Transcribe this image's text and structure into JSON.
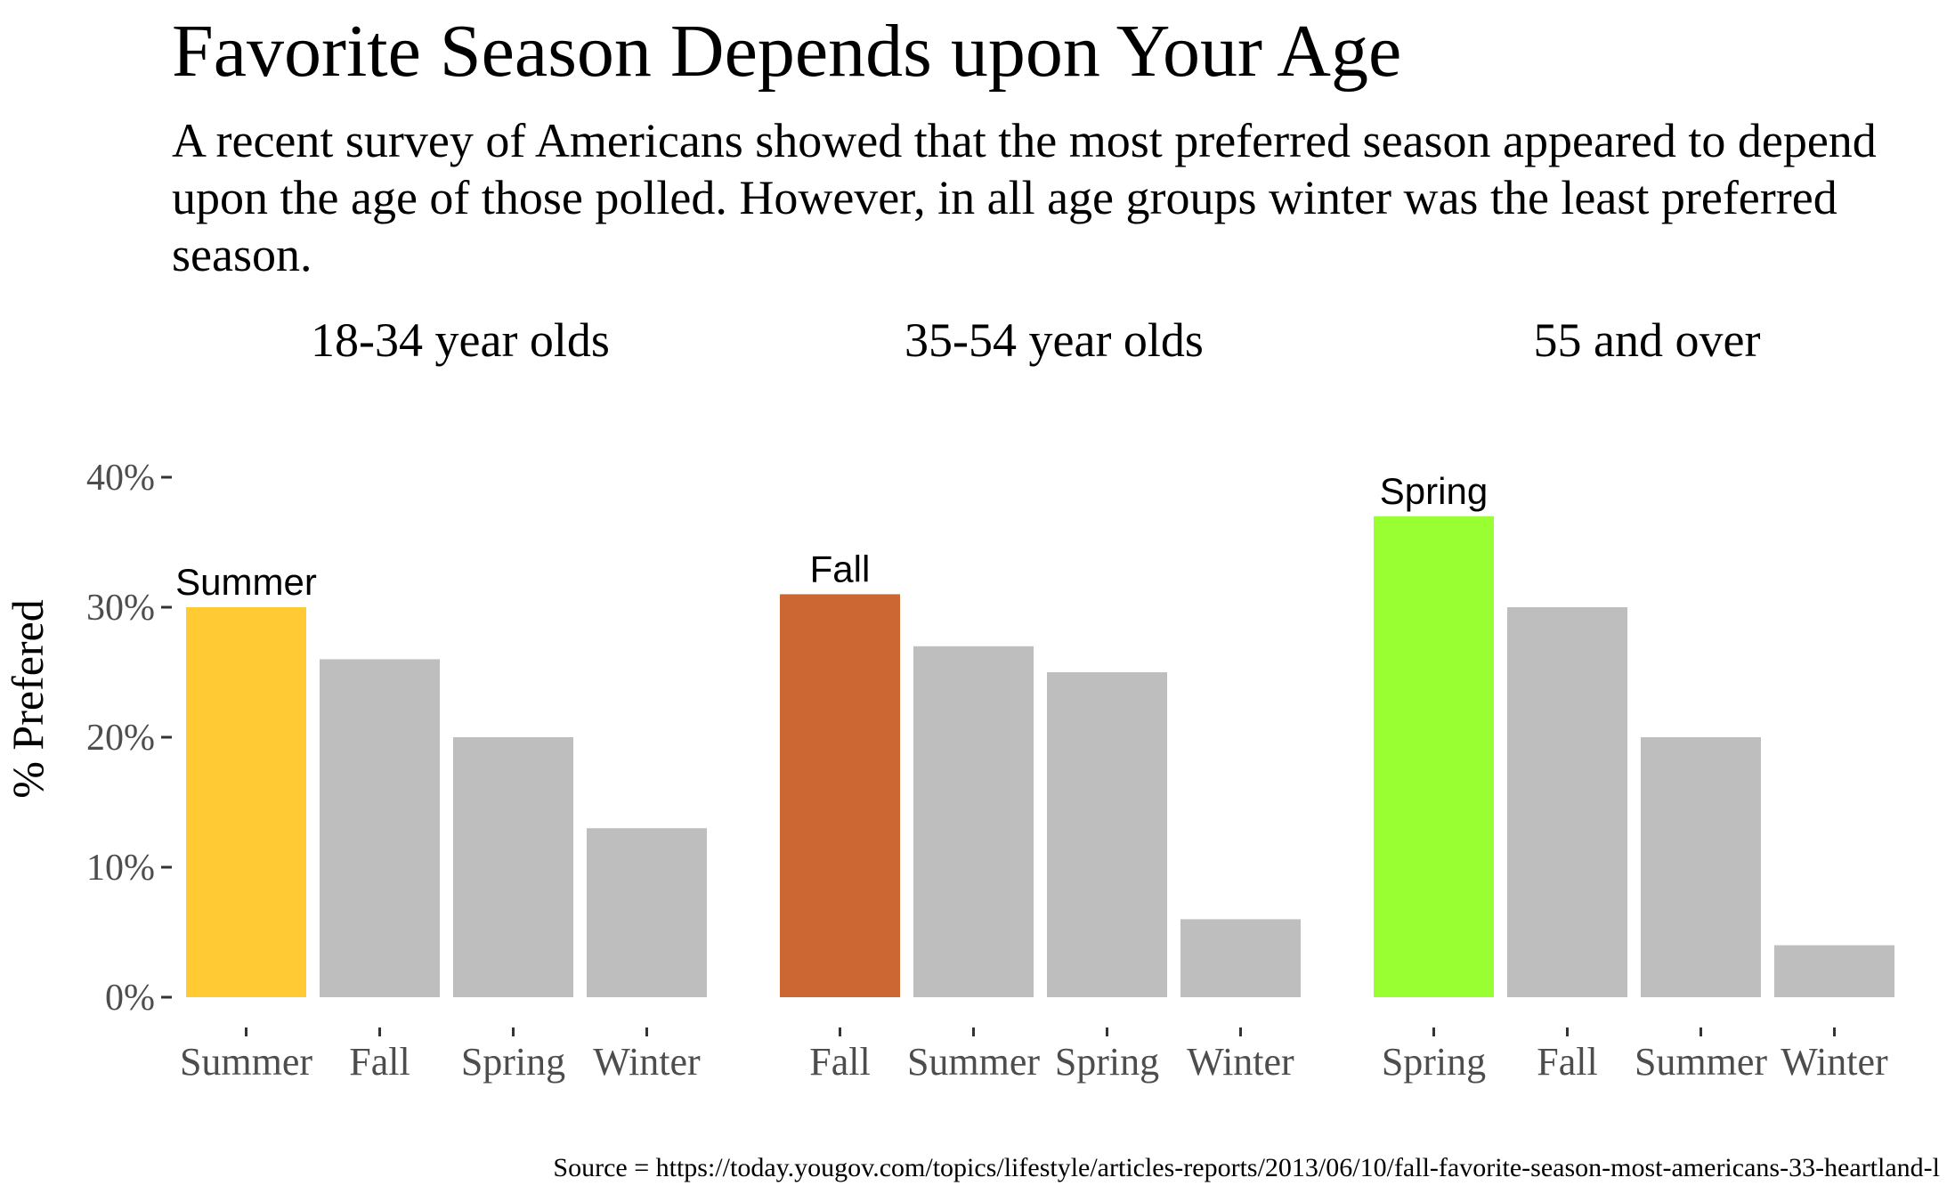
{
  "title": "Favorite Season Depends upon Your Age",
  "subtitle": "A recent survey of Americans showed that the most preferred season appeared to depend upon the age of those polled. However, in all age groups winter was the least preferred season.",
  "source": "Source = https://today.yougov.com/topics/lifestyle/articles-reports/2013/06/10/fall-favorite-season-most-americans-33-heartland-l",
  "chart_data": {
    "type": "bar",
    "ylabel": "% Prefered",
    "ylim": [
      0,
      0.42
    ],
    "yticks": [
      0,
      0.1,
      0.2,
      0.3,
      0.4
    ],
    "ytick_labels": [
      "0%",
      "10%",
      "20%",
      "30%",
      "40%"
    ],
    "grid": false,
    "colors": {
      "highlight_summer": "#FFCA33",
      "highlight_fall": "#CC6633",
      "highlight_spring": "#99FF33",
      "other": "#BEBEBE"
    },
    "panels": [
      {
        "name": "18-34 year olds",
        "categories": [
          "Summer",
          "Fall",
          "Spring",
          "Winter"
        ],
        "values": [
          0.3,
          0.26,
          0.2,
          0.13
        ],
        "highlight": "Summer",
        "highlight_color": "#FFCA33"
      },
      {
        "name": "35-54 year olds",
        "categories": [
          "Fall",
          "Summer",
          "Spring",
          "Winter"
        ],
        "values": [
          0.31,
          0.27,
          0.25,
          0.06
        ],
        "highlight": "Fall",
        "highlight_color": "#CC6633"
      },
      {
        "name": "55 and over",
        "categories": [
          "Spring",
          "Fall",
          "Summer",
          "Winter"
        ],
        "values": [
          0.37,
          0.3,
          0.2,
          0.04
        ],
        "highlight": "Spring",
        "highlight_color": "#99FF33"
      }
    ]
  }
}
